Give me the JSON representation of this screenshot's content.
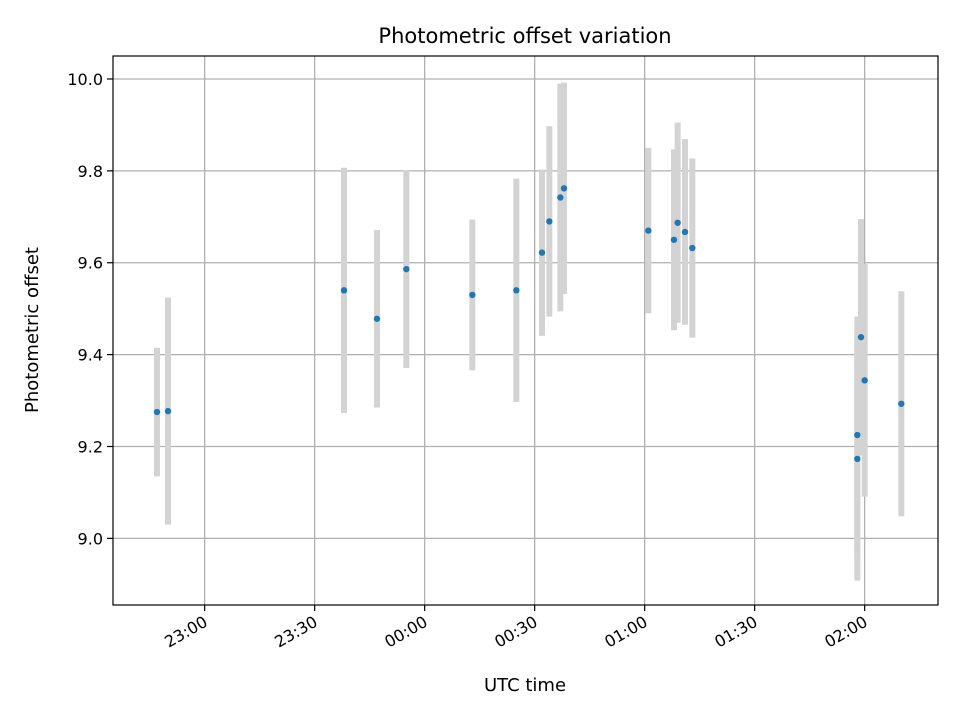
{
  "chart_data": {
    "type": "scatter",
    "title": "Photometric offset variation",
    "xlabel": "UTC time",
    "ylabel": "Photometric offset",
    "x_ticks": [
      "23:00",
      "23:30",
      "00:00",
      "00:30",
      "01:00",
      "01:30",
      "02:00"
    ],
    "y_ticks": [
      "9.0",
      "9.2",
      "9.4",
      "9.6",
      "9.8",
      "10.0"
    ],
    "y_tick_values": [
      9.0,
      9.2,
      9.4,
      9.6,
      9.8,
      10.0
    ],
    "xlim": [
      "22:35",
      "02:20"
    ],
    "ylim": [
      8.855,
      10.05
    ],
    "grid": true,
    "colors": {
      "point": "#1f77b4",
      "errorbar": "#d3d3d3",
      "grid": "#b0b0b0"
    },
    "points": [
      {
        "x": "22:47",
        "y": 9.275,
        "err": 0.14
      },
      {
        "x": "22:50",
        "y": 9.277,
        "err": 0.247
      },
      {
        "x": "23:38",
        "y": 9.54,
        "err": 0.267
      },
      {
        "x": "23:47",
        "y": 9.478,
        "err": 0.193
      },
      {
        "x": "23:55",
        "y": 9.586,
        "err": 0.215
      },
      {
        "x": "00:13",
        "y": 9.53,
        "err": 0.164
      },
      {
        "x": "00:25",
        "y": 9.54,
        "err": 0.243
      },
      {
        "x": "00:32",
        "y": 9.622,
        "err": 0.181
      },
      {
        "x": "00:34",
        "y": 9.69,
        "err": 0.207
      },
      {
        "x": "00:37",
        "y": 9.742,
        "err": 0.248
      },
      {
        "x": "00:38",
        "y": 9.762,
        "err": 0.23
      },
      {
        "x": "01:01",
        "y": 9.67,
        "err": 0.18
      },
      {
        "x": "01:08",
        "y": 9.65,
        "err": 0.197
      },
      {
        "x": "01:09",
        "y": 9.687,
        "err": 0.218
      },
      {
        "x": "01:11",
        "y": 9.667,
        "err": 0.202
      },
      {
        "x": "01:13",
        "y": 9.632,
        "err": 0.195
      },
      {
        "x": "01:58",
        "y": 9.173,
        "err": 0.265
      },
      {
        "x": "01:58",
        "y": 9.225,
        "err": 0.258
      },
      {
        "x": "01:59",
        "y": 9.438,
        "err": 0.257
      },
      {
        "x": "02:00",
        "y": 9.344,
        "err": 0.253
      },
      {
        "x": "02:10",
        "y": 9.293,
        "err": 0.245
      }
    ]
  }
}
